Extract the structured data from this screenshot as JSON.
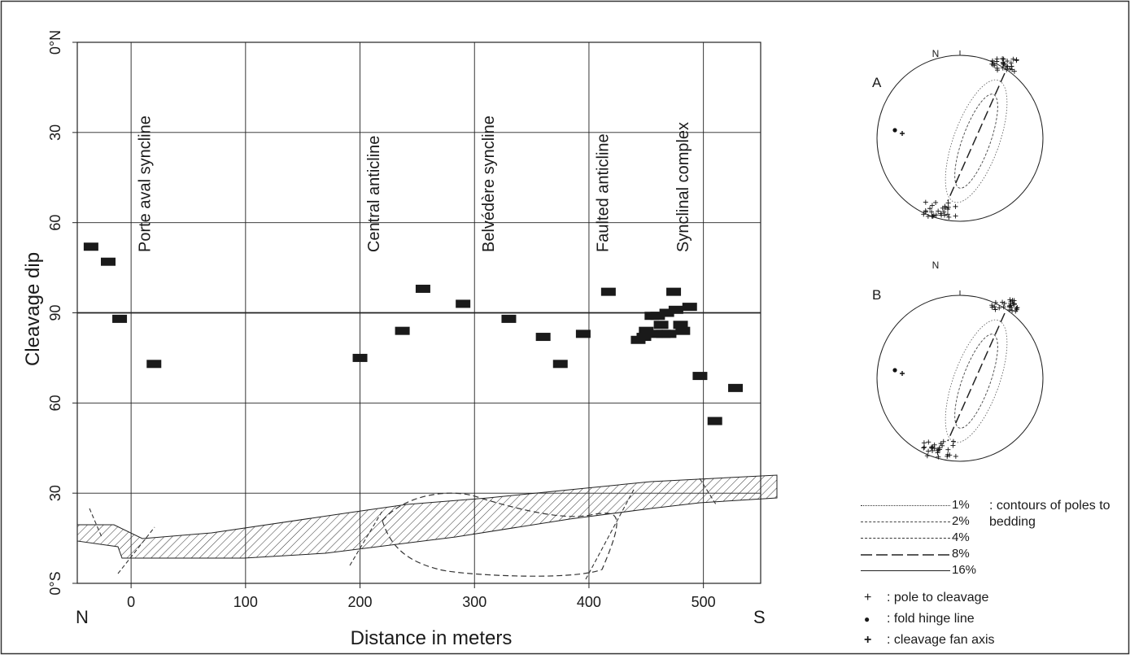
{
  "chart_data": {
    "type": "scatter",
    "xlabel": "Distance in meters",
    "ylabel": "Cleavage dip",
    "x_ticks": [
      "0",
      "100",
      "200",
      "300",
      "400",
      "500"
    ],
    "xlim": [
      -47,
      550
    ],
    "y_axis": {
      "ticks": [
        "0°S",
        "30",
        "60",
        "90",
        "60",
        "30",
        "0°N"
      ],
      "tick_positions": [
        0,
        30,
        60,
        90,
        120,
        150,
        180
      ],
      "ylim": [
        0,
        180
      ],
      "reference_line": 90
    },
    "end_labels": {
      "left": "N",
      "right": "S"
    },
    "grid": true,
    "structures": [
      {
        "label": "Porte aval syncline",
        "x": 0
      },
      {
        "label": "Central anticline",
        "x": 200
      },
      {
        "label": "Belvédère syncline",
        "x": 300
      },
      {
        "label": "Faulted anticline",
        "x": 400
      },
      {
        "label": "Synclinal complex",
        "x": 470
      }
    ],
    "points": [
      {
        "x": -35,
        "y": 112
      },
      {
        "x": -20,
        "y": 107
      },
      {
        "x": -10,
        "y": 88
      },
      {
        "x": 20,
        "y": 73
      },
      {
        "x": 200,
        "y": 75
      },
      {
        "x": 237,
        "y": 84
      },
      {
        "x": 255,
        "y": 98
      },
      {
        "x": 290,
        "y": 93
      },
      {
        "x": 330,
        "y": 88
      },
      {
        "x": 360,
        "y": 82
      },
      {
        "x": 375,
        "y": 73
      },
      {
        "x": 395,
        "y": 83
      },
      {
        "x": 417,
        "y": 97
      },
      {
        "x": 443,
        "y": 81
      },
      {
        "x": 448,
        "y": 82
      },
      {
        "x": 450,
        "y": 84
      },
      {
        "x": 455,
        "y": 89
      },
      {
        "x": 458,
        "y": 83
      },
      {
        "x": 460,
        "y": 89
      },
      {
        "x": 463,
        "y": 86
      },
      {
        "x": 465,
        "y": 83
      },
      {
        "x": 468,
        "y": 90
      },
      {
        "x": 470,
        "y": 83
      },
      {
        "x": 474,
        "y": 97
      },
      {
        "x": 476,
        "y": 91
      },
      {
        "x": 480,
        "y": 86
      },
      {
        "x": 482,
        "y": 84
      },
      {
        "x": 488,
        "y": 92
      },
      {
        "x": 497,
        "y": 69
      },
      {
        "x": 510,
        "y": 54
      },
      {
        "x": 528,
        "y": 65
      }
    ]
  },
  "stereonets": [
    {
      "label": "A",
      "north_label": "N"
    },
    {
      "label": "B",
      "north_label": "N"
    }
  ],
  "legend": {
    "contours": [
      {
        "pct": "1%",
        "style": "dotted"
      },
      {
        "pct": "2%",
        "style": "fine-dashed"
      },
      {
        "pct": "4%",
        "style": "dashed"
      },
      {
        "pct": "8%",
        "style": "long-dashed"
      },
      {
        "pct": "16%",
        "style": "solid"
      }
    ],
    "contours_description": ": contours of poles to bedding",
    "symbols": [
      {
        "glyph": "+",
        "text": ": pole to cleavage"
      },
      {
        "glyph": "●",
        "text": ": fold hinge line"
      },
      {
        "glyph": "+",
        "text": ": cleavage fan axis"
      }
    ]
  }
}
